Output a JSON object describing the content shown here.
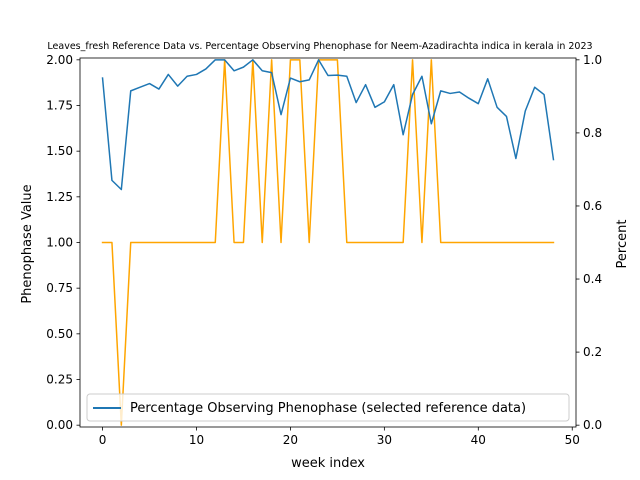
{
  "chart_data": {
    "type": "line",
    "title": "Leaves_fresh Reference Data vs. Percentage Observing Phenophase for Neem-Azadirachta indica in kerala in 2023",
    "xlabel": "week index",
    "ylabel_left": "Phenophase Value",
    "ylabel_right": "Percent",
    "xlim": [
      -2.4,
      50.4
    ],
    "ylim_left": [
      -0.01,
      2.01
    ],
    "ylim_right": [
      -0.005,
      1.005
    ],
    "x_ticks": [
      0,
      10,
      20,
      30,
      40,
      50
    ],
    "y_ticks_left": [
      "0.00",
      "0.25",
      "0.50",
      "0.75",
      "1.00",
      "1.25",
      "1.50",
      "1.75",
      "2.00"
    ],
    "y_ticks_right": [
      "0.0",
      "0.2",
      "0.4",
      "0.6",
      "0.8",
      "1.0"
    ],
    "legend": {
      "placement": "lower-left",
      "entries": [
        "Percentage Observing Phenophase (selected reference data)"
      ]
    },
    "series": [
      {
        "axis": "left",
        "color": "#ffa500",
        "x": [
          0,
          1,
          2,
          3,
          4,
          5,
          6,
          7,
          8,
          9,
          10,
          11,
          12,
          13,
          14,
          15,
          16,
          17,
          18,
          19,
          20,
          21,
          22,
          23,
          24,
          25,
          26,
          27,
          28,
          29,
          30,
          31,
          32,
          33,
          34,
          35,
          36,
          37,
          38,
          39,
          40,
          41,
          42,
          43,
          44,
          45,
          46,
          47,
          48
        ],
        "values": [
          1,
          1,
          0,
          1,
          1,
          1,
          1,
          1,
          1,
          1,
          1,
          1,
          1,
          2,
          1,
          1,
          2,
          1,
          2,
          1,
          2,
          2,
          1,
          2,
          2,
          2,
          1,
          1,
          1,
          1,
          1,
          1,
          1,
          2,
          1,
          2,
          1,
          1,
          1,
          1,
          1,
          1,
          1,
          1,
          1,
          1,
          1,
          1,
          1
        ]
      },
      {
        "name": "Percentage Observing Phenophase",
        "axis": "right",
        "color": "#1f77b4",
        "x": [
          0,
          1,
          2,
          3,
          4,
          5,
          6,
          7,
          8,
          9,
          10,
          11,
          12,
          13,
          14,
          15,
          16,
          17,
          18,
          19,
          20,
          21,
          22,
          23,
          24,
          25,
          26,
          27,
          28,
          29,
          30,
          31,
          32,
          33,
          34,
          35,
          36,
          37,
          38,
          39,
          40,
          41,
          42,
          43,
          44,
          45,
          46,
          47,
          48
        ],
        "values": [
          0.95,
          0.67,
          0.645,
          0.915,
          0.925,
          0.935,
          0.92,
          0.96,
          0.928,
          0.955,
          0.96,
          0.975,
          1.0,
          1.0,
          0.97,
          0.98,
          1.0,
          0.97,
          0.965,
          0.85,
          0.95,
          0.94,
          0.945,
          1.0,
          0.957,
          0.958,
          0.955,
          0.883,
          0.932,
          0.87,
          0.885,
          0.932,
          0.795,
          0.905,
          0.955,
          0.825,
          0.915,
          0.908,
          0.912,
          0.895,
          0.88,
          0.948,
          0.87,
          0.845,
          0.73,
          0.86,
          0.925,
          0.905,
          0.727
        ]
      }
    ]
  }
}
